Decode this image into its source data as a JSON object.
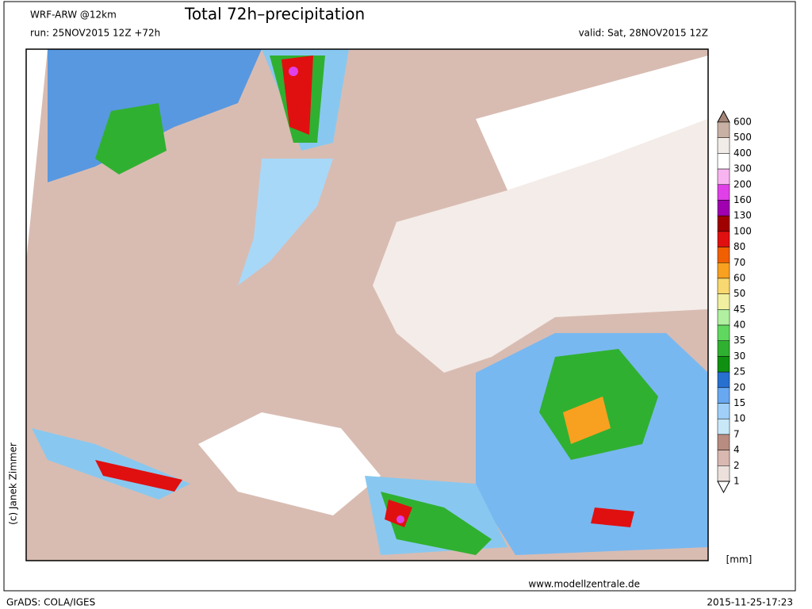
{
  "header": {
    "model": "WRF-ARW @12km",
    "run": "run: 25NOV2015 12Z +72h",
    "title": "Total 72h–precipitation",
    "valid": "valid: Sat, 28NOV2015 12Z"
  },
  "legend": {
    "unit": "[mm]",
    "levels": [
      600,
      500,
      400,
      300,
      200,
      160,
      130,
      100,
      80,
      70,
      60,
      50,
      45,
      40,
      35,
      30,
      25,
      20,
      15,
      10,
      7,
      4,
      2,
      1
    ],
    "colors": [
      "#a48478",
      "#c8b0a4",
      "#f2ece8",
      "#ffffff",
      "#f8b4f0",
      "#e040e8",
      "#a000b0",
      "#a00000",
      "#e01010",
      "#f06000",
      "#f8a020",
      "#f8d870",
      "#f0f0a0",
      "#b0f0a0",
      "#60d860",
      "#30b030",
      "#109010",
      "#2870d0",
      "#68a8f0",
      "#a0d0f8",
      "#c8e8f8",
      "#b88c80",
      "#d8b8b0",
      "#ece0dc",
      "#ffffff"
    ]
  },
  "credits": {
    "author": "(c) Janek Zimmer",
    "site": "www.modellzentrale.de",
    "software": "GrADS: COLA/IGES",
    "timestamp": "2015-11-25-17:23"
  }
}
